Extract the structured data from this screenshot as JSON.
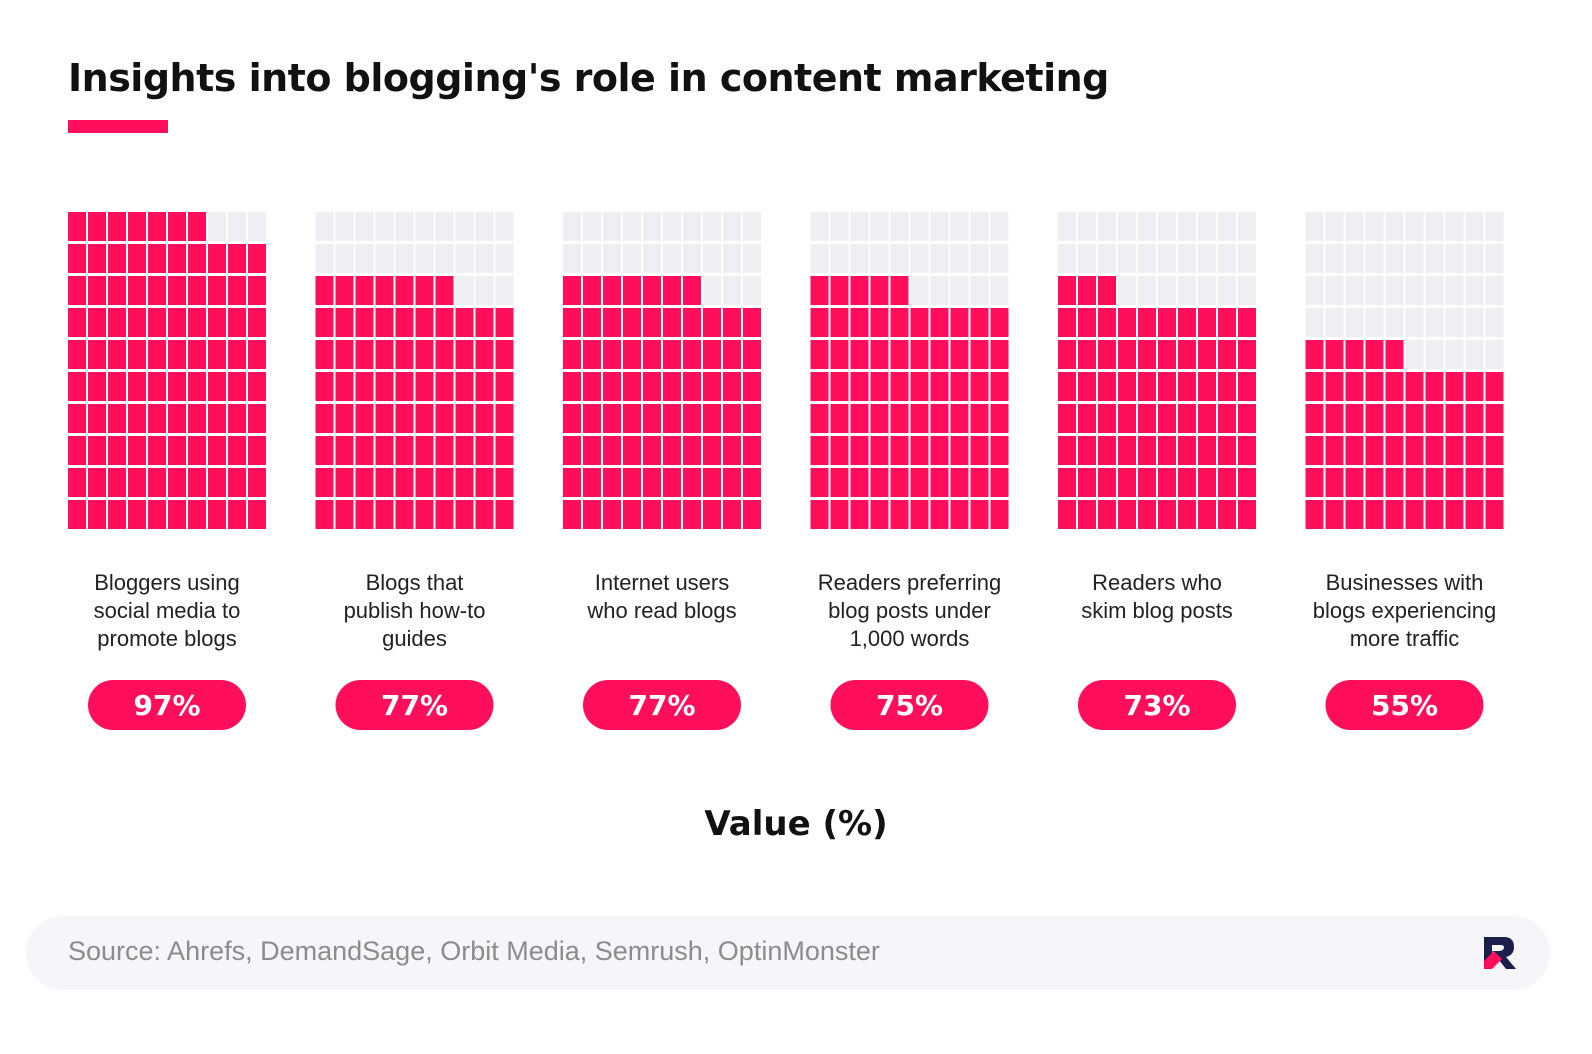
{
  "title": "Insights into blogging's role in content marketing",
  "axis_label": "Value (%)",
  "source": "Source: Ahrefs, DemandSage, Orbit Media, Semrush, OptinMonster",
  "colors": {
    "accent": "#ff0f5b",
    "empty_cell": "#efeef2",
    "logo_navy": "#1b1f4b"
  },
  "logo_icon": "brand-logo-icon",
  "chart_data": {
    "type": "waffle",
    "unit": "%",
    "categories": [
      {
        "label_lines": [
          "Bloggers using",
          "social media to",
          "promote blogs"
        ],
        "value": 97,
        "value_label": "97%"
      },
      {
        "label_lines": [
          "Blogs that",
          "publish how-to",
          "guides"
        ],
        "value": 77,
        "value_label": "77%"
      },
      {
        "label_lines": [
          "Internet users",
          "who read blogs"
        ],
        "value": 77,
        "value_label": "77%"
      },
      {
        "label_lines": [
          "Readers preferring",
          "blog posts under",
          "1,000 words"
        ],
        "value": 75,
        "value_label": "75%"
      },
      {
        "label_lines": [
          "Readers who",
          "skim blog posts"
        ],
        "value": 73,
        "value_label": "73%"
      },
      {
        "label_lines": [
          "Businesses with",
          "blogs experiencing",
          "more traffic"
        ],
        "value": 55,
        "value_label": "55%"
      }
    ]
  }
}
